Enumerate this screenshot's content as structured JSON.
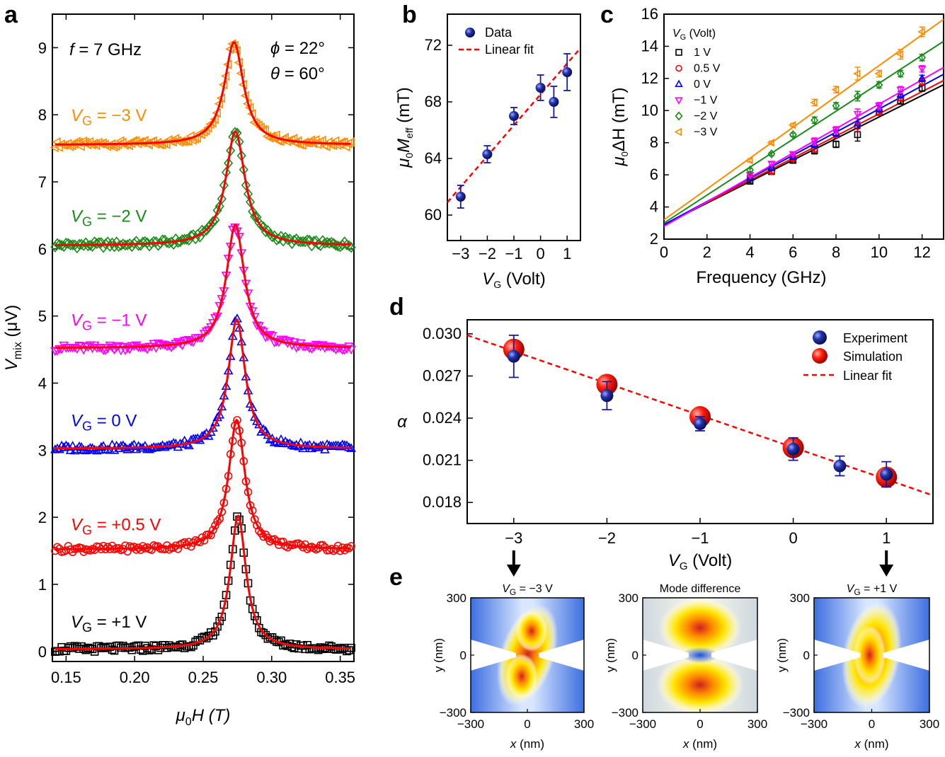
{
  "panels": {
    "a": "a",
    "b": "b",
    "c": "c",
    "d": "d",
    "e": "e"
  },
  "chart_data": [
    {
      "id": "a",
      "type": "line",
      "xlabel_sym": "μ",
      "xlabel_sub": "0",
      "xlabel_rest": "H (T)",
      "ylabel_sym": "V",
      "ylabel_sub": "mix",
      "ylabel_rest": " (μV)",
      "xlim": [
        0.14,
        0.36
      ],
      "ylim": [
        -0.15,
        9.5
      ],
      "xticks": [
        0.15,
        0.2,
        0.25,
        0.3,
        0.35
      ],
      "xtick_labels": [
        "0.15",
        "0.20",
        "0.25",
        "0.30",
        "0.35"
      ],
      "yticks": [
        0,
        1,
        2,
        3,
        4,
        5,
        6,
        7,
        8,
        9
      ],
      "ytick_labels": [
        "0",
        "1",
        "2",
        "3",
        "4",
        "5",
        "6",
        "7",
        "8",
        "9"
      ],
      "annot_f": "f = 7 GHz",
      "annot_phi": "ϕ = 22°",
      "annot_theta": "θ = 60°",
      "fit_color": "#ff0000",
      "series": [
        {
          "name": "V_G = -3 V",
          "vg_text": " = −3 V",
          "color": "#ff8c00",
          "marker": "tri-left",
          "baseline": 7.55,
          "peak": 9.08,
          "center": 0.2725,
          "width": 0.0085
        },
        {
          "name": "V_G = -2 V",
          "vg_text": " = −2 V",
          "color": "#1a8a1a",
          "marker": "diamond",
          "baseline": 6.05,
          "peak": 7.75,
          "center": 0.2735,
          "width": 0.0085
        },
        {
          "name": "V_G = -1 V",
          "vg_text": " = −1 V",
          "color": "#ff00ff",
          "marker": "tri-down",
          "baseline": 4.52,
          "peak": 6.36,
          "center": 0.2735,
          "width": 0.008
        },
        {
          "name": "V_G = 0 V",
          "vg_text": " =  0 V",
          "color": "#0000ff",
          "marker": "tri-up",
          "baseline": 3.02,
          "peak": 4.95,
          "center": 0.2745,
          "width": 0.0075
        },
        {
          "name": "V_G = +0.5 V",
          "vg_text": " = +0.5 V",
          "color": "#ff0000",
          "marker": "circle",
          "baseline": 1.52,
          "peak": 3.45,
          "center": 0.2745,
          "width": 0.0072
        },
        {
          "name": "V_G = +1 V",
          "vg_text": " = +1 V",
          "color": "#000000",
          "marker": "square",
          "baseline": 0.03,
          "peak": 2.02,
          "center": 0.2755,
          "width": 0.007
        }
      ]
    },
    {
      "id": "b",
      "type": "scatter",
      "xlabel_sym": "V",
      "xlabel_sub": "G",
      "xlabel_rest": " (Volt)",
      "ylabel_sym": "μ",
      "ylabel_sub": "0",
      "ylabel_sym2": "M",
      "ylabel_sub2": "eff",
      "ylabel_rest": " (mT)",
      "xlim": [
        -3.5,
        1.5
      ],
      "ylim": [
        58.2,
        74.2
      ],
      "xticks": [
        -3,
        -2,
        -1,
        0,
        1
      ],
      "xtick_labels": [
        "−3",
        "−2",
        "−1",
        "0",
        "1"
      ],
      "yticks": [
        60,
        64,
        68,
        72
      ],
      "ytick_labels": [
        "60",
        "64",
        "68",
        "72"
      ],
      "x": [
        -3,
        -2,
        -1,
        0,
        0.5,
        1
      ],
      "y": [
        61.3,
        64.3,
        67.0,
        69.0,
        68.0,
        70.1
      ],
      "yerr": [
        0.8,
        0.6,
        0.6,
        0.9,
        1.1,
        1.3
      ],
      "fit_x": [
        -3.5,
        1.5
      ],
      "fit_y": [
        60.9,
        71.8
      ],
      "legend": [
        "Data",
        "Linear fit"
      ],
      "marker_color": "#1a1a9a",
      "fit_color": "#ff0000"
    },
    {
      "id": "c",
      "type": "scatter",
      "xlabel": "Frequency (GHz)",
      "ylabel_sym": "μ",
      "ylabel_sub": "0",
      "ylabel_rest": "ΔH (mT)",
      "xlim": [
        0,
        13
      ],
      "ylim": [
        2,
        16
      ],
      "xticks": [
        0,
        2,
        4,
        6,
        8,
        10,
        12
      ],
      "xtick_labels": [
        "0",
        "2",
        "4",
        "6",
        "8",
        "10",
        "12"
      ],
      "yticks": [
        2,
        4,
        6,
        8,
        10,
        12,
        14,
        16
      ],
      "ytick_labels": [
        "2",
        "4",
        "6",
        "8",
        "10",
        "12",
        "14",
        "16"
      ],
      "legend_title_sym": "V",
      "legend_title_sub": "G",
      "legend_title_rest": " (Volt)",
      "x": [
        4,
        5,
        6,
        7,
        8,
        9,
        10,
        11,
        12
      ],
      "series": [
        {
          "name": "1 V",
          "color": "#000000",
          "marker": "square",
          "fit": [
            2.9,
            0.67
          ],
          "y": [
            5.6,
            6.2,
            6.9,
            7.5,
            7.9,
            8.5,
            9.9,
            10.6,
            11.4
          ],
          "yerr": [
            0.1,
            0.1,
            0.1,
            0.2,
            0.2,
            0.4,
            0.2,
            0.2,
            0.2
          ]
        },
        {
          "name": "0.5 V",
          "color": "#ff0000",
          "marker": "circle",
          "fit": [
            2.9,
            0.69
          ],
          "y": [
            5.9,
            6.2,
            7.0,
            7.6,
            8.5,
            9.0,
            9.9,
            10.8,
            11.8
          ],
          "yerr": [
            0.1,
            0.1,
            0.1,
            0.2,
            0.2,
            0.3,
            0.2,
            0.2,
            0.2
          ]
        },
        {
          "name": "0 V",
          "color": "#0000ff",
          "marker": "tri-up",
          "fit": [
            2.9,
            0.72
          ],
          "y": [
            5.8,
            6.4,
            7.1,
            7.9,
            8.6,
            9.2,
            10.1,
            11.0,
            12.0
          ],
          "yerr": [
            0.1,
            0.1,
            0.1,
            0.2,
            0.2,
            0.3,
            0.2,
            0.2,
            0.2
          ]
        },
        {
          "name": "−1 V",
          "color": "#ff00ff",
          "marker": "tri-down",
          "fit": [
            2.8,
            0.76
          ],
          "y": [
            6.0,
            6.7,
            7.3,
            8.1,
            8.8,
            9.8,
            10.3,
            11.3,
            12.6
          ],
          "yerr": [
            0.1,
            0.1,
            0.1,
            0.2,
            0.2,
            0.3,
            0.2,
            0.2,
            0.2
          ]
        },
        {
          "name": "−2 V",
          "color": "#1a8a1a",
          "marker": "diamond",
          "fit": [
            3.0,
            0.87
          ],
          "y": [
            6.3,
            7.3,
            8.5,
            9.4,
            10.3,
            10.9,
            11.6,
            12.3,
            13.3
          ],
          "yerr": [
            0.1,
            0.1,
            0.1,
            0.2,
            0.2,
            0.3,
            0.2,
            0.2,
            0.2
          ]
        },
        {
          "name": "−3 V",
          "color": "#ff8c00",
          "marker": "tri-left",
          "fit": [
            3.2,
            0.96
          ],
          "y": [
            6.9,
            8.0,
            9.1,
            10.5,
            11.3,
            12.3,
            12.3,
            13.5,
            14.9
          ],
          "yerr": [
            0.1,
            0.1,
            0.1,
            0.2,
            0.2,
            0.4,
            0.2,
            0.3,
            0.3
          ]
        }
      ]
    },
    {
      "id": "d",
      "type": "scatter",
      "xlabel_sym": "V",
      "xlabel_sub": "G",
      "xlabel_rest": " (Volt)",
      "ylabel": "α",
      "xlim": [
        -3.5,
        1.5
      ],
      "ylim": [
        0.0165,
        0.031
      ],
      "xticks": [
        -3,
        -2,
        -1,
        0,
        1
      ],
      "xtick_labels": [
        "−3",
        "−2",
        "−1",
        "0",
        "1"
      ],
      "yticks": [
        0.018,
        0.021,
        0.024,
        0.027,
        0.03
      ],
      "ytick_labels": [
        "0.018",
        "0.021",
        "0.024",
        "0.027",
        "0.030"
      ],
      "experiment_x": [
        -3,
        -2,
        -1,
        0,
        0.5,
        1
      ],
      "experiment_y": [
        0.0284,
        0.0256,
        0.0236,
        0.0218,
        0.0206,
        0.02
      ],
      "experiment_yerr": [
        0.0015,
        0.001,
        0.0005,
        0.0008,
        0.0007,
        0.0009
      ],
      "simulation_x": [
        -3,
        -2,
        -1,
        0,
        1
      ],
      "simulation_y": [
        0.0289,
        0.0264,
        0.0241,
        0.0219,
        0.0198
      ],
      "fit_x": [
        -3.5,
        1.5
      ],
      "fit_y": [
        0.0299,
        0.0185
      ],
      "legend": [
        "Experiment",
        "Simulation",
        "Linear fit"
      ],
      "experiment_color": "#1a1a9a",
      "simulation_color": "#ff0000",
      "fit_color": "#ff0000"
    }
  ],
  "panel_e": {
    "maps": [
      {
        "title": "V_G = -3 V",
        "title_sym": "V",
        "title_sub": "G",
        "title_rest": " = −3 V",
        "mode": "minus3"
      },
      {
        "title": "Mode difference",
        "mode": "diff"
      },
      {
        "title": "V_G = +1 V",
        "title_sym": "V",
        "title_sub": "G",
        "title_rest": " = +1 V",
        "mode": "plus1"
      }
    ],
    "xticks": [
      "−300",
      "0",
      "300"
    ],
    "yticks": [
      "300",
      "0",
      "−300"
    ],
    "xlabel_sym": "x",
    "xlabel_rest": " (nm)",
    "ylabel": "y (nm)"
  }
}
